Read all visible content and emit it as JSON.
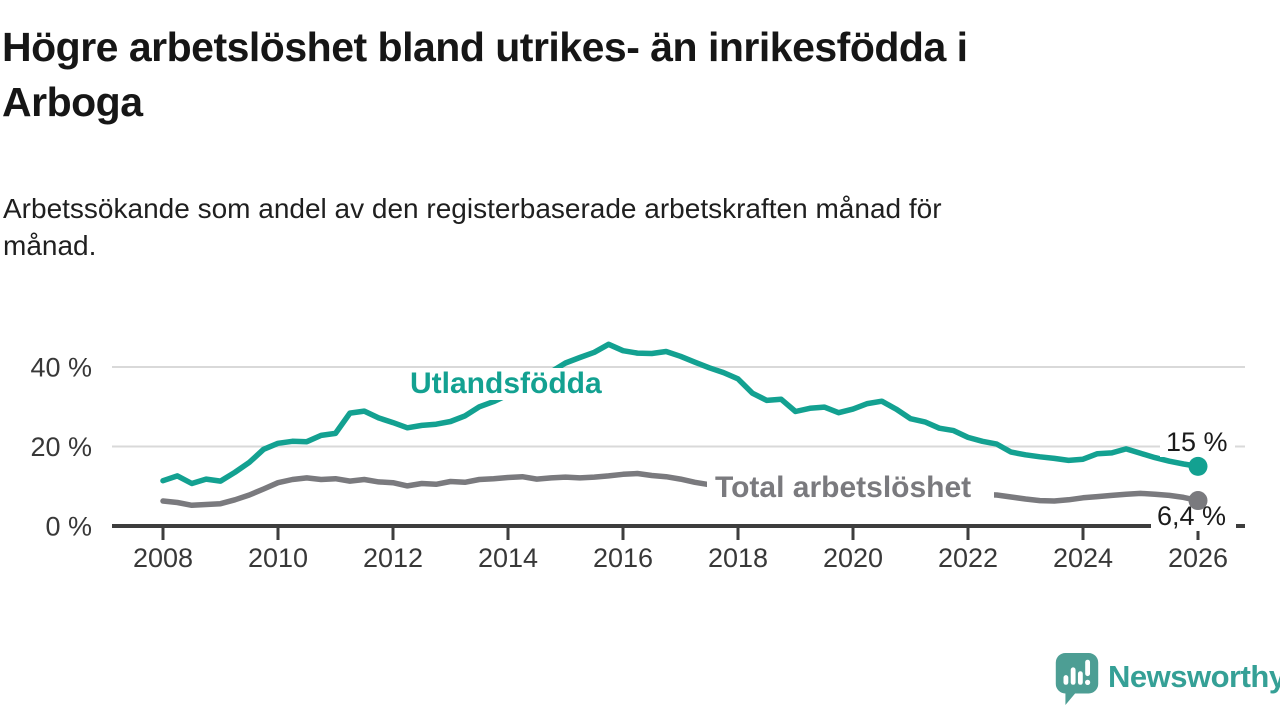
{
  "header": {
    "title": "Högre arbetslöshet bland utrikes- än inrikesfödda i Arboga",
    "title_lines": [
      "Högre arbetslöshet bland utrikes- än inrikesfödda i",
      "Arboga"
    ],
    "subtitle": "Arbetssökande som andel av den registerbaserade arbetskraften månad för månad.",
    "subtitle_lines": [
      "Arbetssökande som andel av den registerbaserade arbetskraften månad för",
      "månad."
    ]
  },
  "chart_data": {
    "type": "line",
    "title": "Högre arbetslöshet bland utrikes- än inrikesfödda i Arboga",
    "subtitle": "Arbetssökande som andel av den registerbaserade arbetskraften månad för månad.",
    "xlabel": "",
    "ylabel": "",
    "grid": "horizontal-gridlines",
    "legend": "inline-series-labels",
    "xlim": [
      2007.1,
      2026.8
    ],
    "ylim": [
      0,
      47
    ],
    "x_ticks": [
      2008,
      2010,
      2012,
      2014,
      2016,
      2018,
      2020,
      2022,
      2024,
      2026
    ],
    "y_ticks": [
      {
        "value": 0,
        "label": "0 %"
      },
      {
        "value": 20,
        "label": "20 %"
      },
      {
        "value": 40,
        "label": "40 %"
      }
    ],
    "x": [
      2008,
      2008.25,
      2008.5,
      2008.75,
      2009,
      2009.25,
      2009.5,
      2009.75,
      2010,
      2010.25,
      2010.5,
      2010.75,
      2011,
      2011.25,
      2011.5,
      2011.75,
      2012,
      2012.25,
      2012.5,
      2012.75,
      2013,
      2013.25,
      2013.5,
      2013.75,
      2014,
      2014.25,
      2014.5,
      2014.75,
      2015,
      2015.25,
      2015.5,
      2015.75,
      2016,
      2016.25,
      2016.5,
      2016.75,
      2017,
      2017.25,
      2017.5,
      2017.75,
      2018,
      2018.25,
      2018.5,
      2018.75,
      2019,
      2019.25,
      2019.5,
      2019.75,
      2020,
      2020.25,
      2020.5,
      2020.75,
      2021,
      2021.25,
      2021.5,
      2021.75,
      2022,
      2022.25,
      2022.5,
      2022.75,
      2023,
      2023.25,
      2023.5,
      2023.75,
      2024,
      2024.25,
      2024.5,
      2024.75,
      2025,
      2025.25,
      2025.5,
      2025.75,
      2026
    ],
    "series": [
      {
        "name": "Utlandsfödda",
        "color": "#13a191",
        "end_value": 15,
        "end_value_label": "15 %",
        "values": [
          11.4,
          12.6,
          10.7,
          11.8,
          11.3,
          13.5,
          16,
          19.3,
          20.8,
          21.3,
          21.2,
          22.8,
          23.3,
          28.4,
          28.9,
          27.2,
          26,
          24.7,
          25.3,
          25.6,
          26.3,
          27.7,
          30,
          31.3,
          33,
          34.6,
          36.5,
          38.8,
          41,
          42.4,
          43.7,
          45.7,
          44.1,
          43.5,
          43.4,
          43.9,
          42.7,
          41.2,
          39.8,
          38.6,
          37,
          33.4,
          31.6,
          31.9,
          28.8,
          29.6,
          29.9,
          28.5,
          29.4,
          30.8,
          31.4,
          29.4,
          27,
          26.2,
          24.6,
          24,
          22.3,
          21.3,
          20.6,
          18.6,
          17.9,
          17.4,
          17,
          16.5,
          16.8,
          18.2,
          18.4,
          19.4,
          18.3,
          17.2,
          16.3,
          15.6,
          15
        ]
      },
      {
        "name": "Total arbetslöshet",
        "color": "#7a7a7e",
        "end_value": 6.4,
        "end_value_label": "6,4 %",
        "values": [
          6.3,
          5.9,
          5.2,
          5.4,
          5.6,
          6.6,
          7.8,
          9.3,
          10.9,
          11.7,
          12.1,
          11.7,
          11.9,
          11.3,
          11.7,
          11.1,
          10.9,
          10.1,
          10.7,
          10.5,
          11.2,
          11,
          11.7,
          11.9,
          12.2,
          12.4,
          11.8,
          12.1,
          12.3,
          12.1,
          12.3,
          12.6,
          13,
          13.2,
          12.7,
          12.4,
          11.8,
          11,
          10.4,
          10.1,
          9.9,
          9.7,
          9.5,
          9.3,
          9.1,
          9,
          8.9,
          8.8,
          8.9,
          9.3,
          9.4,
          9.1,
          8.8,
          8.5,
          8.3,
          8.1,
          8,
          7.9,
          7.8,
          7.3,
          6.8,
          6.4,
          6.3,
          6.6,
          7.1,
          7.4,
          7.7,
          8,
          8.2,
          8,
          7.7,
          7.2,
          6.4
        ]
      }
    ],
    "colors": {
      "gridline": "#d9d9d9",
      "axis": "#3d3d3d",
      "tick_text": "#383838",
      "end_label_text": "#1b1b1b"
    }
  },
  "branding": {
    "logo_text": "Newsworthy",
    "logo_color": "#35a096",
    "icon_color": "#4d9e94",
    "icon": "newsworthy-speech-bubble-bar-chart-icon"
  }
}
